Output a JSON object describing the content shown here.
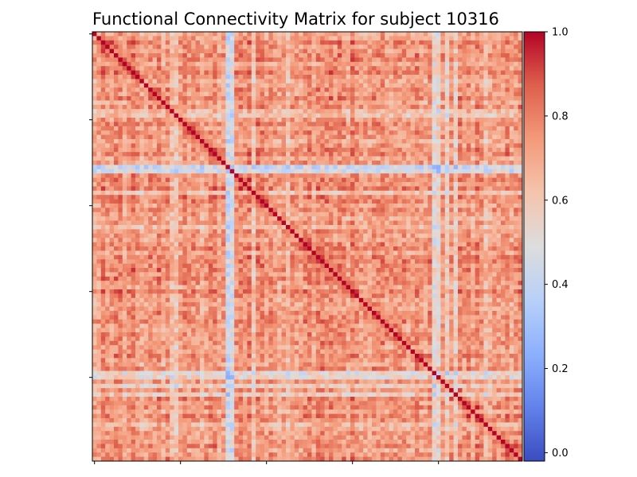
{
  "figure": {
    "title": "Functional Connectivity Matrix for subject 10316"
  },
  "chart_data": {
    "type": "heatmap",
    "title": "Functional Connectivity Matrix for subject 10316",
    "xlabel": "",
    "ylabel": "",
    "n": 100,
    "colormap": "coolwarm",
    "vmin": -0.02,
    "vmax": 1.0,
    "diagonal_value": 1.0,
    "base_value": 0.75,
    "weak_regions": [
      {
        "index": 31,
        "value": 0.25
      },
      {
        "index": 32,
        "value": 0.3
      },
      {
        "index": 18,
        "value": 0.55
      },
      {
        "index": 19,
        "value": 0.5
      },
      {
        "index": 79,
        "value": 0.4
      },
      {
        "index": 80,
        "value": 0.4
      },
      {
        "index": 82,
        "value": 0.45
      },
      {
        "index": 84,
        "value": 0.45
      },
      {
        "index": 37,
        "value": 0.5
      },
      {
        "index": 45,
        "value": 0.55
      },
      {
        "index": 91,
        "value": 0.55
      }
    ],
    "weak_rows": [
      {
        "index": 31,
        "value": 0.3
      },
      {
        "index": 32,
        "value": 0.35
      },
      {
        "index": 79,
        "value": 0.35
      },
      {
        "index": 37,
        "value": 0.5
      },
      {
        "index": 45,
        "value": 0.55
      }
    ],
    "colorbar": {
      "ticks": [
        0.0,
        0.2,
        0.4,
        0.6,
        0.8,
        1.0
      ],
      "tick_labels": [
        "0.0",
        "0.2",
        "0.4",
        "0.6",
        "0.8",
        "1.0"
      ]
    }
  }
}
